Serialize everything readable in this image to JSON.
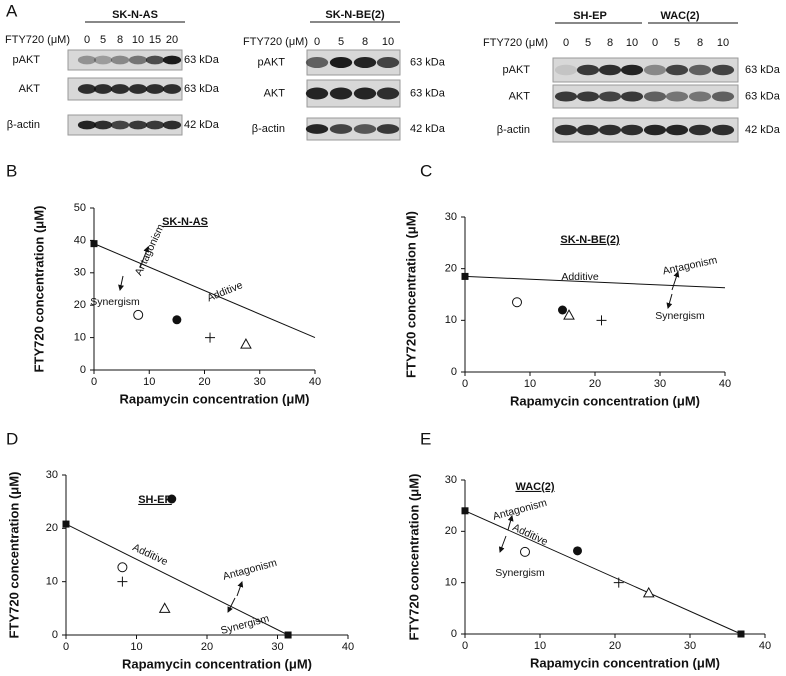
{
  "blot_panel": {
    "label": "A",
    "groups": [
      {
        "cell_lines": [
          "SK-N-AS"
        ],
        "dose_label": "FTY720 (μM)",
        "doses": [
          0,
          5,
          8,
          10,
          15,
          20
        ],
        "rows": [
          {
            "protein": "pAKT",
            "size": "63 kDa"
          },
          {
            "protein": "AKT",
            "size": "63 kDa"
          },
          {
            "protein": "β-actin",
            "size": "42 kDa"
          }
        ]
      },
      {
        "cell_lines": [
          "SK-N-BE(2)"
        ],
        "dose_label": "FTY720 (μM)",
        "doses": [
          0,
          5,
          8,
          10
        ],
        "rows": [
          {
            "protein": "pAKT",
            "size": "63 kDa"
          },
          {
            "protein": "AKT",
            "size": "63 kDa"
          },
          {
            "protein": "β-actin",
            "size": "42 kDa"
          }
        ]
      },
      {
        "cell_lines": [
          "SH-EP",
          "WAC(2)"
        ],
        "dose_label": "FTY720 (μM)",
        "doses": [
          0,
          5,
          8,
          10,
          0,
          5,
          8,
          10
        ],
        "rows": [
          {
            "protein": "pAKT",
            "size": "63 kDa"
          },
          {
            "protein": "AKT",
            "size": "63 kDa"
          },
          {
            "protein": "β-actin",
            "size": "42 kDa"
          }
        ]
      }
    ]
  },
  "chart_data": [
    {
      "type": "scatter",
      "label": "B",
      "title": "SK-N-AS",
      "xlabel": "Rapamycin concentration (μM)",
      "ylabel": "FTY720  concentration (μM)",
      "xlim": [
        0,
        40
      ],
      "ylim": [
        0,
        50
      ],
      "xticks": [
        0,
        10,
        20,
        30,
        40
      ],
      "yticks": [
        0,
        10,
        20,
        30,
        40,
        50
      ],
      "isobole": {
        "x": [
          0,
          40
        ],
        "y": [
          39,
          10
        ]
      },
      "series": [
        {
          "marker": "square",
          "x": [
            0
          ],
          "y": [
            39
          ]
        },
        {
          "marker": "open-circle",
          "x": [
            8
          ],
          "y": [
            17
          ]
        },
        {
          "marker": "filled-circle",
          "x": [
            15
          ],
          "y": [
            15.5
          ]
        },
        {
          "marker": "plus",
          "x": [
            21
          ],
          "y": [
            10
          ]
        },
        {
          "marker": "triangle",
          "x": [
            27.5
          ],
          "y": [
            8
          ]
        }
      ],
      "annotations": [
        "Antagonism",
        "Synergism",
        "Additive"
      ]
    },
    {
      "type": "scatter",
      "label": "C",
      "title": "SK-N-BE(2)",
      "xlabel": "Rapamycin concentration (μM)",
      "ylabel": "FTY720  concentration (μM)",
      "xlim": [
        0,
        40
      ],
      "ylim": [
        0,
        30
      ],
      "xticks": [
        0,
        10,
        20,
        30,
        40
      ],
      "yticks": [
        0,
        10,
        20,
        30
      ],
      "isobole": {
        "x": [
          0,
          40
        ],
        "y": [
          18.5,
          16.3
        ]
      },
      "series": [
        {
          "marker": "square",
          "x": [
            0
          ],
          "y": [
            18.5
          ]
        },
        {
          "marker": "open-circle",
          "x": [
            8
          ],
          "y": [
            13.5
          ]
        },
        {
          "marker": "filled-circle",
          "x": [
            15
          ],
          "y": [
            12
          ]
        },
        {
          "marker": "triangle",
          "x": [
            16
          ],
          "y": [
            11
          ]
        },
        {
          "marker": "plus",
          "x": [
            21
          ],
          "y": [
            10
          ]
        }
      ],
      "annotations": [
        "Additive",
        "Antagonism",
        "Synergism"
      ]
    },
    {
      "type": "scatter",
      "label": "D",
      "title": "SH-EP",
      "xlabel": "Rapamycin concentration (μM)",
      "ylabel": "FTY720  concentration (μM)",
      "xlim": [
        0,
        40
      ],
      "ylim": [
        0,
        30
      ],
      "xticks": [
        0,
        10,
        20,
        30,
        40
      ],
      "yticks": [
        0,
        10,
        20,
        30
      ],
      "isobole": {
        "x": [
          0,
          31.5
        ],
        "y": [
          20.8,
          0
        ]
      },
      "series": [
        {
          "marker": "square",
          "x": [
            0,
            31.5
          ],
          "y": [
            20.8,
            0
          ]
        },
        {
          "marker": "filled-circle",
          "x": [
            15
          ],
          "y": [
            25.5
          ]
        },
        {
          "marker": "open-circle",
          "x": [
            8
          ],
          "y": [
            12.7
          ]
        },
        {
          "marker": "plus",
          "x": [
            8
          ],
          "y": [
            10
          ]
        },
        {
          "marker": "triangle",
          "x": [
            14
          ],
          "y": [
            5
          ]
        }
      ],
      "annotations": [
        "Additive",
        "Antagonism",
        "Synergism"
      ]
    },
    {
      "type": "scatter",
      "label": "E",
      "title": "WAC(2)",
      "xlabel": "Rapamycin concentration (μM)",
      "ylabel": "FTY720  concentration (μM)",
      "xlim": [
        0,
        40
      ],
      "ylim": [
        0,
        30
      ],
      "xticks": [
        0,
        10,
        20,
        30,
        40
      ],
      "yticks": [
        0,
        10,
        20,
        30
      ],
      "isobole": {
        "x": [
          0,
          36.8
        ],
        "y": [
          24,
          0
        ]
      },
      "series": [
        {
          "marker": "square",
          "x": [
            0,
            36.8
          ],
          "y": [
            24,
            0
          ]
        },
        {
          "marker": "open-circle",
          "x": [
            8
          ],
          "y": [
            16
          ]
        },
        {
          "marker": "filled-circle",
          "x": [
            15
          ],
          "y": [
            16.2
          ]
        },
        {
          "marker": "plus",
          "x": [
            20.5
          ],
          "y": [
            10
          ]
        },
        {
          "marker": "triangle",
          "x": [
            24.5
          ],
          "y": [
            8
          ]
        }
      ],
      "annotations": [
        "Antagonism",
        "Additive",
        "Synergism"
      ]
    }
  ]
}
